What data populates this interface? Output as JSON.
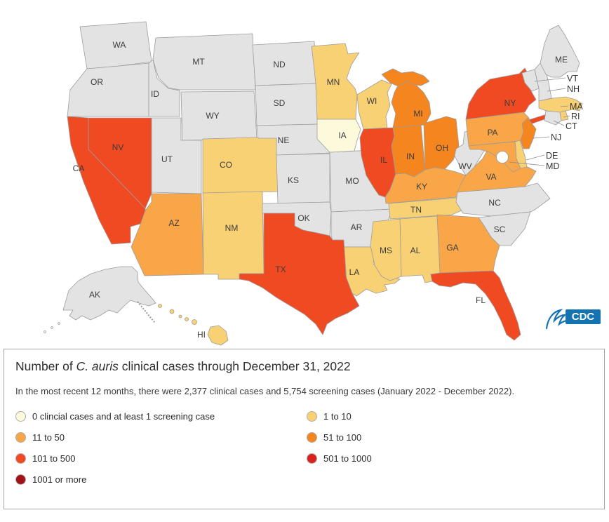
{
  "panel": {
    "title": {
      "prefix": "Number of ",
      "italic": "C. auris",
      "suffix": " clinical cases through December 31, 2022"
    },
    "subtitle": "In the most recent 12 months, there were 2,377 clinical cases and 5,754 screening cases (January 2022 - December 2022)."
  },
  "categories": {
    "none": {
      "color": "#e3e3e3"
    },
    "not_reported": {
      "color": "#ffffff"
    },
    "screening_only": {
      "color": "#fcfadb"
    },
    "c1_10": {
      "color": "#f9d175"
    },
    "c11_50": {
      "color": "#f8a647"
    },
    "c51_100": {
      "color": "#f5861f"
    },
    "c101_500": {
      "color": "#f04a23"
    },
    "c501_1000": {
      "color": "#d7221e"
    },
    "c1001_more": {
      "color": "#a21116"
    }
  },
  "legend": {
    "items": [
      {
        "category": "screening_only",
        "label": "0 clincial cases and at least 1 screening case"
      },
      {
        "category": "c1_10",
        "label": "1 to 10"
      },
      {
        "category": "c11_50",
        "label": "11 to 50"
      },
      {
        "category": "c51_100",
        "label": "51 to 100"
      },
      {
        "category": "c101_500",
        "label": "101 to 500"
      },
      {
        "category": "c501_1000",
        "label": "501 to 1000"
      },
      {
        "category": "c1001_more",
        "label": "1001 or more"
      }
    ]
  },
  "map": {
    "states": [
      {
        "id": "WA",
        "label": "WA",
        "category": "none"
      },
      {
        "id": "OR",
        "label": "OR",
        "category": "none"
      },
      {
        "id": "ID",
        "label": "ID",
        "category": "none"
      },
      {
        "id": "MT",
        "label": "MT",
        "category": "none"
      },
      {
        "id": "WY",
        "label": "WY",
        "category": "none"
      },
      {
        "id": "UT",
        "label": "UT",
        "category": "none"
      },
      {
        "id": "CO",
        "label": "CO",
        "category": "c1_10"
      },
      {
        "id": "NV",
        "label": "NV",
        "category": "c101_500"
      },
      {
        "id": "CA",
        "label": "CA",
        "category": "c101_500"
      },
      {
        "id": "AZ",
        "label": "AZ",
        "category": "c11_50"
      },
      {
        "id": "NM",
        "label": "NM",
        "category": "c1_10"
      },
      {
        "id": "ND",
        "label": "ND",
        "category": "none"
      },
      {
        "id": "SD",
        "label": "SD",
        "category": "none"
      },
      {
        "id": "NE",
        "label": "NE",
        "category": "none"
      },
      {
        "id": "KS",
        "label": "KS",
        "category": "none"
      },
      {
        "id": "MO",
        "label": "MO",
        "category": "none"
      },
      {
        "id": "OK",
        "label": "OK",
        "category": "none"
      },
      {
        "id": "AR",
        "label": "AR",
        "category": "none"
      },
      {
        "id": "LA",
        "label": "LA",
        "category": "c1_10"
      },
      {
        "id": "TX",
        "label": "TX",
        "category": "c101_500"
      },
      {
        "id": "MN",
        "label": "MN",
        "category": "c1_10"
      },
      {
        "id": "IA",
        "label": "IA",
        "category": "screening_only"
      },
      {
        "id": "WI",
        "label": "WI",
        "category": "c1_10"
      },
      {
        "id": "IL",
        "label": "IL",
        "category": "c101_500"
      },
      {
        "id": "IN",
        "label": "IN",
        "category": "c51_100"
      },
      {
        "id": "MI",
        "label": "MI",
        "category": "c51_100"
      },
      {
        "id": "OH",
        "label": "OH",
        "category": "c51_100"
      },
      {
        "id": "KY",
        "label": "KY",
        "category": "c11_50"
      },
      {
        "id": "TN",
        "label": "TN",
        "category": "c1_10"
      },
      {
        "id": "WV",
        "label": "WV",
        "category": "none"
      },
      {
        "id": "VA",
        "label": "VA",
        "category": "c11_50"
      },
      {
        "id": "NC",
        "label": "NC",
        "category": "none"
      },
      {
        "id": "SC",
        "label": "SC",
        "category": "none"
      },
      {
        "id": "GA",
        "label": "GA",
        "category": "c11_50"
      },
      {
        "id": "AL",
        "label": "AL",
        "category": "c1_10"
      },
      {
        "id": "MS",
        "label": "MS",
        "category": "c1_10"
      },
      {
        "id": "FL",
        "label": "FL",
        "category": "c101_500"
      },
      {
        "id": "PA",
        "label": "PA",
        "category": "c11_50"
      },
      {
        "id": "NY",
        "label": "NY",
        "category": "c101_500"
      },
      {
        "id": "NJ",
        "label": "NJ",
        "category": "c51_100"
      },
      {
        "id": "MD",
        "label": "MD",
        "category": "c11_50"
      },
      {
        "id": "DE",
        "label": "DE",
        "category": "c1_10"
      },
      {
        "id": "VT",
        "label": "VT",
        "category": "none"
      },
      {
        "id": "NH",
        "label": "NH",
        "category": "none"
      },
      {
        "id": "ME",
        "label": "ME",
        "category": "none"
      },
      {
        "id": "MA",
        "label": "MA",
        "category": "c1_10"
      },
      {
        "id": "RI",
        "label": "RI",
        "category": "c1_10"
      },
      {
        "id": "CT",
        "label": "CT",
        "category": "none"
      },
      {
        "id": "AK",
        "label": "AK",
        "category": "none"
      },
      {
        "id": "HI",
        "label": "HI",
        "category": "c1_10"
      },
      {
        "id": "DC",
        "label": "",
        "category": "not_reported"
      }
    ],
    "callouts": [
      {
        "id": "VT",
        "label": "VT"
      },
      {
        "id": "NH",
        "label": "NH"
      },
      {
        "id": "MA",
        "label": "MA"
      },
      {
        "id": "RI",
        "label": "RI"
      },
      {
        "id": "CT",
        "label": "CT"
      },
      {
        "id": "NJ",
        "label": "NJ"
      },
      {
        "id": "DE",
        "label": "DE"
      },
      {
        "id": "MD",
        "label": "MD"
      }
    ]
  },
  "logo": {
    "text": "CDC"
  }
}
